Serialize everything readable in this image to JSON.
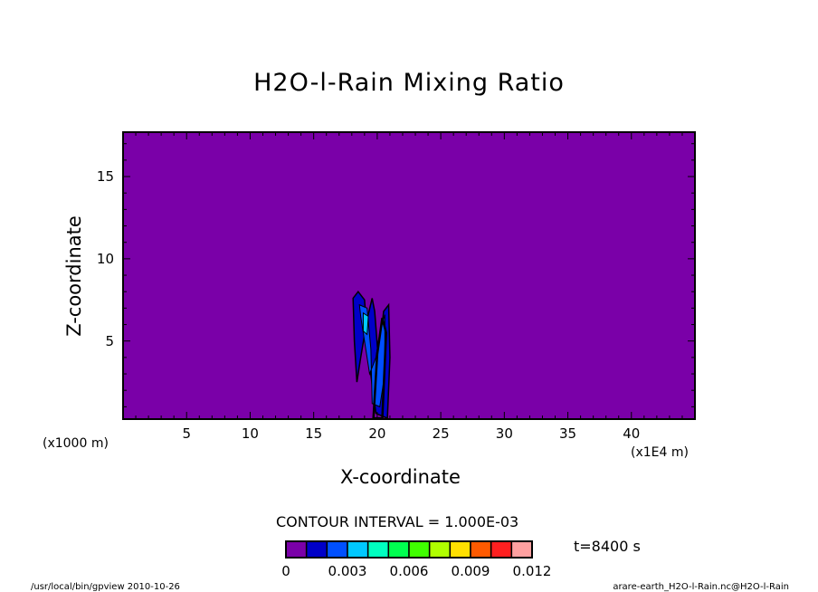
{
  "chart_data": {
    "type": "contour",
    "title": "H2O-l-Rain Mixing Ratio",
    "xlabel": "X-coordinate",
    "ylabel": "Z-coordinate",
    "x_unit_left": "(x1000 m)",
    "x_unit_right": "(x1E4 m)",
    "xlim": [
      0,
      45
    ],
    "ylim": [
      0.25,
      17.7
    ],
    "xticks": [
      5,
      10,
      15,
      20,
      25,
      30,
      35,
      40
    ],
    "yticks": [
      5,
      10,
      15
    ],
    "contour_interval": "CONTOUR INTERVAL = 1.000E-03",
    "time": "t=8400 s",
    "colorbar": {
      "levels": [
        0,
        0.001,
        0.002,
        0.003,
        0.004,
        0.005,
        0.006,
        0.007,
        0.008,
        0.009,
        0.01,
        0.011,
        0.012
      ],
      "tick_labels": [
        "0",
        "0.003",
        "0.006",
        "0.009",
        "0.012"
      ],
      "tick_values": [
        0,
        0.003,
        0.006,
        0.009,
        0.012
      ],
      "colors": [
        "#7a00a8",
        "#0000c8",
        "#0050ff",
        "#00c8ff",
        "#00ffc0",
        "#00ff50",
        "#40ff00",
        "#b0ff00",
        "#ffe000",
        "#ff5a00",
        "#ff2020",
        "#ffa0a0"
      ]
    },
    "feature": "rain column near x≈18–21, z≈0–8, max ≈0.004"
  },
  "footer": {
    "left": "/usr/local/bin/gpview  2010-10-26",
    "right": "arare-earth_H2O-l-Rain.nc@H2O-l-Rain"
  }
}
